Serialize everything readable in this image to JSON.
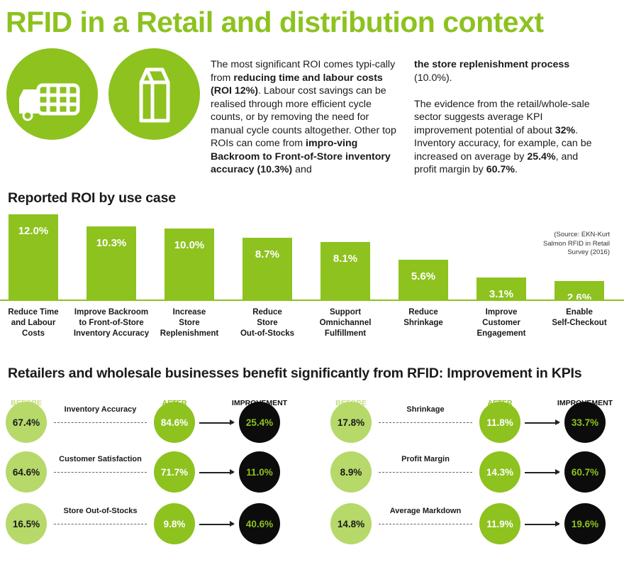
{
  "title": "RFID in a Retail and distribution context",
  "icons": [
    "delivery-truck-icon",
    "milk-carton-icon"
  ],
  "colors": {
    "accent": "#8dc21f",
    "light": "#b6d96a",
    "dark": "#0c0c0c"
  },
  "intro": {
    "col1": [
      {
        "t": "The most significant ROI comes typi-cally from ",
        "b": false
      },
      {
        "t": "reducing time and labour costs (ROI 12%)",
        "b": true
      },
      {
        "t": ". Labour cost savings can be realised through more efficient cycle counts, or by removing the need for manual cycle counts altogether. Other top ROIs can come from ",
        "b": false
      },
      {
        "t": "impro-ving Backroom to Front-of-Store inventory accuracy (10.3%)",
        "b": true
      },
      {
        "t": " and",
        "b": false
      }
    ],
    "col2_p1": [
      {
        "t": "the store replenishment process",
        "b": true
      },
      {
        "t": " (10.0%).",
        "b": false
      }
    ],
    "col2_p2": [
      {
        "t": "The evidence from the retail/whole-sale sector suggests average KPI improvement potential of about ",
        "b": false
      },
      {
        "t": "32%",
        "b": true
      },
      {
        "t": ". Inventory accuracy, for example, can be increased on average by ",
        "b": false
      },
      {
        "t": "25.4%",
        "b": true
      },
      {
        "t": ", and profit margin by ",
        "b": false
      },
      {
        "t": "60.7%",
        "b": true
      },
      {
        "t": ".",
        "b": false
      }
    ]
  },
  "chart_data": {
    "type": "bar",
    "title": "Reported ROI by use case",
    "categories": [
      "Reduce Time and Labour Costs",
      "Improve Backroom to Front-of-Store Inventory Accuracy",
      "Increase Store Replenishment",
      "Reduce Store Out-of-Stocks",
      "Support Omnichannel Fulfillment",
      "Reduce Shrinkage",
      "Improve Customer Engagement",
      "Enable Self-Checkout"
    ],
    "category_lines": [
      [
        "Reduce Time",
        "and Labour",
        "Costs"
      ],
      [
        "Improve Backroom",
        "to Front-of-Store",
        "Inventory Accuracy"
      ],
      [
        "Increase",
        "Store",
        "Replenishment"
      ],
      [
        "Reduce",
        "Store",
        "Out-of-Stocks"
      ],
      [
        "Support",
        "Omnichannel",
        "Fulfillment"
      ],
      [
        "Reduce",
        "Shrinkage"
      ],
      [
        "Improve",
        "Customer",
        "Engagement"
      ],
      [
        "Enable",
        "Self-Checkout"
      ]
    ],
    "values": [
      12.0,
      10.3,
      10.0,
      8.7,
      8.1,
      5.6,
      3.1,
      2.6
    ],
    "value_labels": [
      "12.0%",
      "10.3%",
      "10.0%",
      "8.7%",
      "8.1%",
      "5.6%",
      "3.1%",
      "2.6%"
    ],
    "ylim": [
      0,
      12.0
    ],
    "grid": false,
    "legend": "none",
    "source": "(Source: EKN-Kurt Salmon RFID in Retail Survey (2016)"
  },
  "kpi": {
    "title": "Retailers and wholesale businesses benefit significantly from RFID: Improvement in KPIs",
    "headers": {
      "before": "BEFORE RFID",
      "after": "AFTER RFID",
      "improvement": "IMPROVEMENT"
    },
    "left": [
      {
        "name": "Inventory Accuracy",
        "before": "67.4%",
        "after": "84.6%",
        "improvement": "25.4%"
      },
      {
        "name": "Customer Satisfaction",
        "before": "64.6%",
        "after": "71.7%",
        "improvement": "11.0%"
      },
      {
        "name": "Store Out-of-Stocks",
        "before": "16.5%",
        "after": "9.8%",
        "improvement": "40.6%"
      }
    ],
    "right": [
      {
        "name": "Shrinkage",
        "before": "17.8%",
        "after": "11.8%",
        "improvement": "33.7%"
      },
      {
        "name": "Profit Margin",
        "before": "8.9%",
        "after": "14.3%",
        "improvement": "60.7%"
      },
      {
        "name": "Average Markdown",
        "before": "14.8%",
        "after": "11.9%",
        "improvement": "19.6%"
      }
    ]
  }
}
